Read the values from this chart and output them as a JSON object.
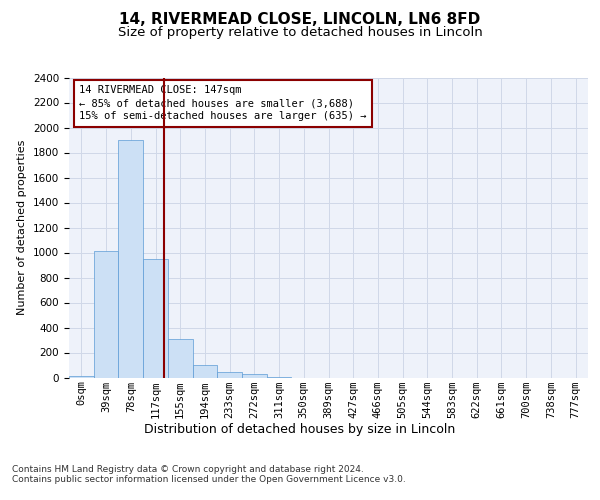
{
  "title1": "14, RIVERMEAD CLOSE, LINCOLN, LN6 8FD",
  "title2": "Size of property relative to detached houses in Lincoln",
  "xlabel": "Distribution of detached houses by size in Lincoln",
  "ylabel": "Number of detached properties",
  "categories": [
    "0sqm",
    "39sqm",
    "78sqm",
    "117sqm",
    "155sqm",
    "194sqm",
    "233sqm",
    "272sqm",
    "311sqm",
    "350sqm",
    "389sqm",
    "427sqm",
    "466sqm",
    "505sqm",
    "544sqm",
    "583sqm",
    "622sqm",
    "661sqm",
    "700sqm",
    "738sqm",
    "777sqm"
  ],
  "values": [
    10,
    1010,
    1900,
    950,
    310,
    100,
    45,
    25,
    5,
    0,
    0,
    0,
    0,
    0,
    0,
    0,
    0,
    0,
    0,
    0,
    0
  ],
  "bar_color": "#cce0f5",
  "bar_edge_color": "#5b9bd5",
  "vline_x": 3.85,
  "vline_color": "#8b0000",
  "annotation_line1": "14 RIVERMEAD CLOSE: 147sqm",
  "annotation_line2": "← 85% of detached houses are smaller (3,688)",
  "annotation_line3": "15% of semi-detached houses are larger (635) →",
  "annotation_box_color": "white",
  "annotation_box_edge_color": "#8b0000",
  "ylim": [
    0,
    2400
  ],
  "yticks": [
    0,
    200,
    400,
    600,
    800,
    1000,
    1200,
    1400,
    1600,
    1800,
    2000,
    2200,
    2400
  ],
  "grid_color": "#d0d8e8",
  "background_color": "#eef2fa",
  "footer_text": "Contains HM Land Registry data © Crown copyright and database right 2024.\nContains public sector information licensed under the Open Government Licence v3.0.",
  "title1_fontsize": 11,
  "title2_fontsize": 9.5,
  "xlabel_fontsize": 9,
  "ylabel_fontsize": 8,
  "tick_fontsize": 7.5,
  "annotation_fontsize": 7.5,
  "footer_fontsize": 6.5
}
